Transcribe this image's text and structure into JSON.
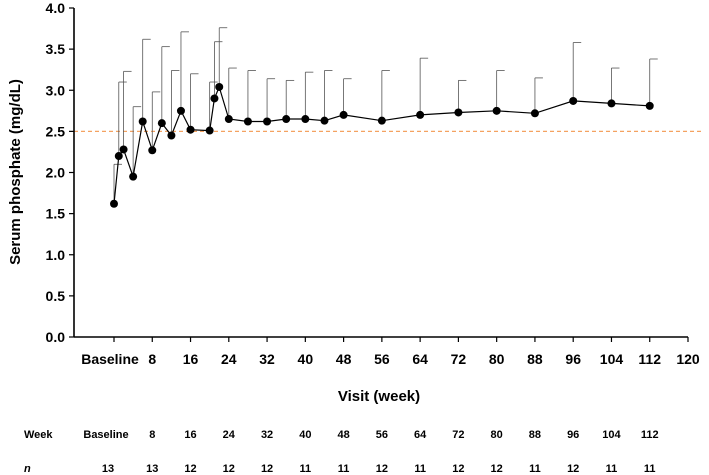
{
  "chart_data": {
    "type": "line",
    "title": "",
    "xlabel": "Visit (week)",
    "ylabel": "Serum phosphate (mg/dL)",
    "xlim": [
      0,
      120
    ],
    "ylim": [
      0.0,
      4.0
    ],
    "x_ticks": [
      0,
      8,
      16,
      24,
      32,
      40,
      48,
      56,
      64,
      72,
      80,
      88,
      96,
      104,
      112,
      120
    ],
    "x_tick_labels": [
      "Baseline",
      "8",
      "16",
      "24",
      "32",
      "40",
      "48",
      "56",
      "64",
      "72",
      "80",
      "88",
      "96",
      "104",
      "112",
      "120"
    ],
    "y_ticks": [
      0.0,
      0.5,
      1.0,
      1.5,
      2.0,
      2.5,
      3.0,
      3.5,
      4.0
    ],
    "y_tick_labels": [
      "0.0",
      "0.5",
      "1.0",
      "1.5",
      "2.0",
      "2.5",
      "3.0",
      "3.5",
      "4.0"
    ],
    "reference_line": {
      "y": 2.5,
      "color": "#f4a261",
      "style": "dashed"
    },
    "grid": false,
    "legend": "none",
    "series": [
      {
        "x": [
          0,
          1,
          2,
          4,
          6,
          8,
          10,
          12,
          14,
          16,
          20,
          21,
          22,
          24,
          28,
          32,
          36,
          40,
          44,
          48,
          56,
          64,
          72,
          80,
          88,
          96,
          104,
          112
        ],
        "y": [
          1.62,
          2.2,
          2.28,
          1.95,
          2.62,
          2.27,
          2.6,
          2.45,
          2.75,
          2.52,
          2.51,
          2.9,
          3.04,
          2.65,
          2.62,
          2.62,
          2.65,
          2.65,
          2.63,
          2.7,
          2.63,
          2.7,
          2.73,
          2.75,
          2.72,
          2.87,
          2.84,
          2.81
        ],
        "error_upper": [
          2.1,
          3.1,
          3.23,
          2.8,
          3.62,
          2.98,
          3.53,
          3.24,
          3.71,
          3.2,
          3.1,
          3.59,
          3.76,
          3.27,
          3.24,
          3.14,
          3.12,
          3.22,
          3.24,
          3.14,
          3.24,
          3.39,
          3.12,
          3.24,
          3.15,
          3.58,
          3.27,
          3.38
        ],
        "color": "#000000"
      }
    ]
  },
  "table": {
    "header_label": "Week",
    "n_label": "n",
    "weeks": [
      "Baseline",
      "8",
      "16",
      "24",
      "32",
      "40",
      "48",
      "56",
      "64",
      "72",
      "80",
      "88",
      "96",
      "104",
      "112"
    ],
    "n_values": [
      "13",
      "13",
      "12",
      "12",
      "12",
      "11",
      "11",
      "12",
      "11",
      "12",
      "12",
      "11",
      "12",
      "11",
      "11"
    ]
  }
}
